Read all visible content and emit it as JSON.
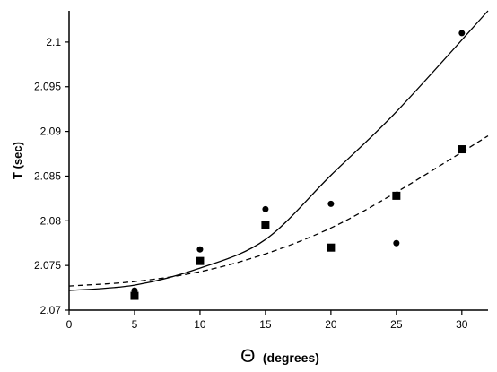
{
  "chart_data": {
    "type": "scatter",
    "title": "",
    "xlabel_symbol": "Θ",
    "xlabel_text": "(degrees)",
    "ylabel": "T (sec)",
    "xlim": [
      0,
      32
    ],
    "ylim": [
      2.07,
      2.1035
    ],
    "xticks": [
      0,
      5,
      10,
      15,
      20,
      25,
      30
    ],
    "yticks": [
      2.07,
      2.075,
      2.08,
      2.085,
      2.09,
      2.095,
      2.1
    ],
    "ytick_labels": [
      "2.07",
      "2.075",
      "2.08",
      "2.085",
      "2.09",
      "2.095",
      "2.1"
    ],
    "grid": false,
    "legend": "none",
    "series": [
      {
        "marker": "circle",
        "points": [
          [
            5,
            2.0722
          ],
          [
            10,
            2.0768
          ],
          [
            15,
            2.0813
          ],
          [
            20,
            2.0819
          ],
          [
            25,
            2.0775
          ],
          [
            30,
            2.101
          ]
        ]
      },
      {
        "marker": "square",
        "points": [
          [
            5,
            2.0716
          ],
          [
            10,
            2.0755
          ],
          [
            15,
            2.0795
          ],
          [
            20,
            2.077
          ],
          [
            25,
            2.0828
          ],
          [
            30,
            2.088
          ]
        ]
      }
    ],
    "curves": [
      {
        "style": "solid",
        "points": [
          [
            0,
            2.0722
          ],
          [
            5,
            2.0728
          ],
          [
            10,
            2.0747
          ],
          [
            15,
            2.0779
          ],
          [
            20,
            2.0851
          ],
          [
            25,
            2.0922
          ],
          [
            32,
            2.1035
          ]
        ]
      },
      {
        "style": "dashed",
        "points": [
          [
            0,
            2.0727
          ],
          [
            5,
            2.0732
          ],
          [
            10,
            2.0743
          ],
          [
            15,
            2.0763
          ],
          [
            20,
            2.0792
          ],
          [
            25,
            2.0832
          ],
          [
            32,
            2.0895
          ]
        ]
      }
    ]
  }
}
